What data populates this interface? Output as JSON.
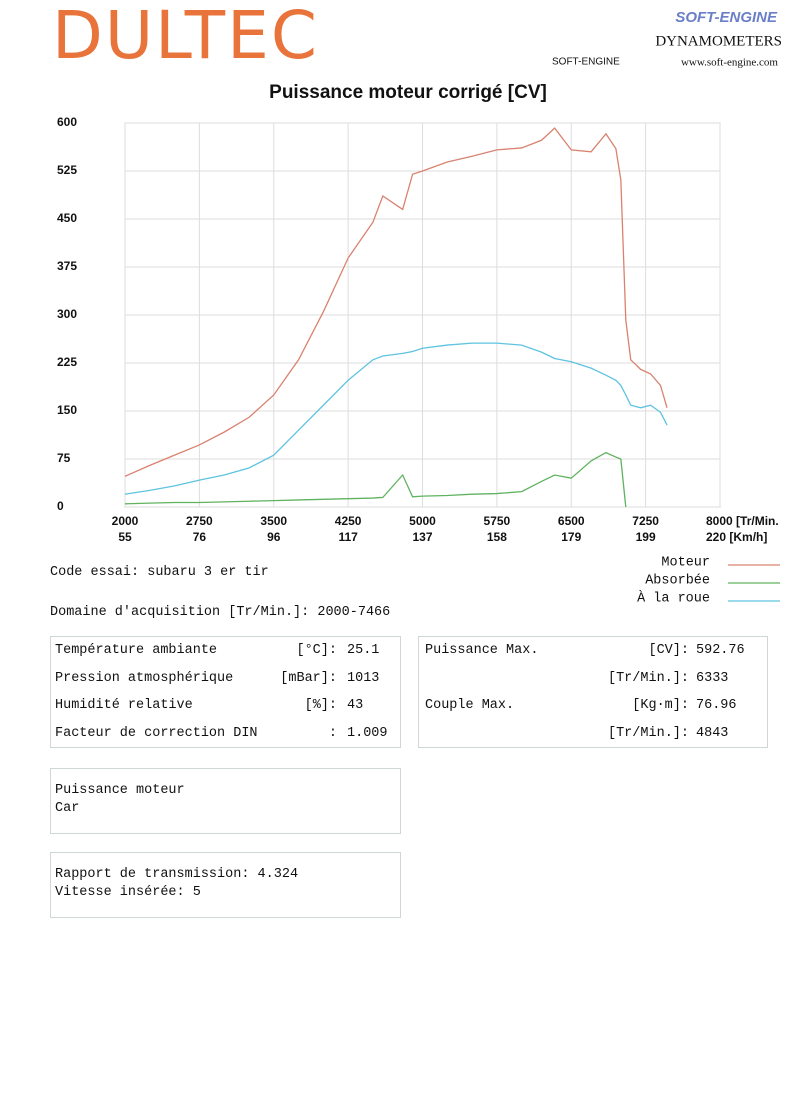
{
  "header": {
    "logo": "DULTEC",
    "brand": "SOFT-ENGINE",
    "brand_sub": "DYNAMOMETERS",
    "brand_tag": "SOFT-ENGINE",
    "website": "www.soft-engine.com"
  },
  "chart_data": {
    "type": "line",
    "title": "Puissance moteur corrigé [CV]",
    "x": [
      2000,
      2250,
      2500,
      2750,
      3000,
      3250,
      3500,
      3750,
      4000,
      4250,
      4500,
      4600,
      4800,
      4900,
      5000,
      5250,
      5500,
      5750,
      6000,
      6200,
      6333,
      6500,
      6700,
      6850,
      6950,
      7000,
      7050,
      7100,
      7200,
      7300,
      7400,
      7466
    ],
    "series": [
      {
        "name": "Moteur",
        "color": "#d9826f",
        "values": [
          48,
          65,
          81,
          97,
          117,
          140,
          175,
          230,
          305,
          389,
          445,
          486,
          465,
          520,
          525,
          539,
          548,
          558,
          561,
          573,
          592,
          558,
          555,
          583,
          560,
          511,
          292,
          230,
          215,
          208,
          190,
          155
        ]
      },
      {
        "name": "Absorbée",
        "color": "#5fb35f",
        "values": [
          5,
          6,
          7,
          7,
          8,
          9,
          10,
          11,
          12,
          13,
          14,
          15,
          50,
          16,
          17,
          18,
          20,
          21,
          24,
          40,
          50,
          45,
          72,
          85,
          78,
          75,
          0,
          null,
          null,
          null,
          null,
          null
        ]
      },
      {
        "name": "À la roue",
        "color": "#5ec3e0",
        "values": [
          20,
          26,
          33,
          42,
          50,
          61,
          81,
          120,
          159,
          198,
          230,
          236,
          240,
          243,
          248,
          253,
          256,
          256,
          253,
          242,
          232,
          227,
          217,
          206,
          198,
          190,
          175,
          159,
          155,
          159,
          148,
          128
        ]
      }
    ],
    "xlim": [
      2000,
      8000
    ],
    "xticks": [
      2000,
      2750,
      3500,
      4250,
      5000,
      5750,
      6500,
      7250,
      {
        "value": 8000,
        "label": "8000 [Tr/Min."
      }
    ],
    "x2_labels": [
      "55",
      "76",
      "96",
      "117",
      "137",
      "158",
      "179",
      "199",
      "220 [Km/h]"
    ],
    "ylim": [
      0,
      600
    ],
    "yticks": [
      0,
      75,
      150,
      225,
      300,
      375,
      450,
      525,
      600
    ],
    "grid": true,
    "legend": "right"
  },
  "test": {
    "code": "Code essai: subaru 3 er tir",
    "range": "Domaine d'acquisition [Tr/Min.]: 2000-7466"
  },
  "conditions": [
    {
      "label": "Température ambiante",
      "unit": "[°C]:",
      "value": "25.1"
    },
    {
      "label": "Pression atmosphérique",
      "unit": "[mBar]:",
      "value": "1013"
    },
    {
      "label": "Humidité relative",
      "unit": "[%]:",
      "value": "43"
    },
    {
      "label": "Facteur de correction DIN",
      "unit": ":",
      "value": "1.009"
    }
  ],
  "results": [
    {
      "label": "Puissance Max.",
      "unit": "[CV]:",
      "value": "592.76"
    },
    {
      "unit": "[Tr/Min.]:",
      "value": "6333"
    },
    {
      "label": "Couple Max.",
      "unit": "[Kg·m]:",
      "value": "76.96"
    },
    {
      "unit": "[Tr/Min.]:",
      "value": "4843"
    }
  ],
  "notes": [
    "Puissance moteur",
    "Car"
  ],
  "transmission": [
    "Rapport de transmission: 4.324",
    "Vitesse insérée: 5"
  ]
}
